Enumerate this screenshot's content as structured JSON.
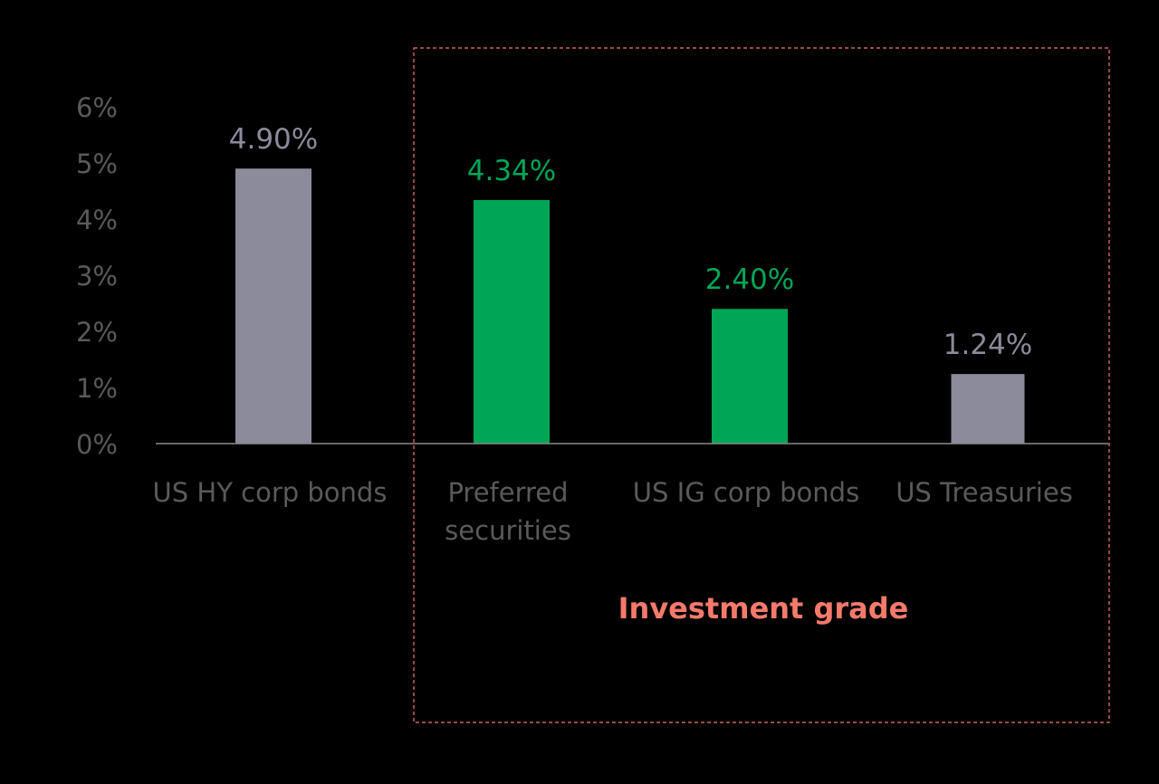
{
  "chart_data": {
    "type": "bar",
    "categories": [
      [
        "US HY corp bonds"
      ],
      [
        "Preferred",
        "securities"
      ],
      [
        "US IG corp bonds"
      ],
      [
        "US Treasuries"
      ]
    ],
    "values": [
      4.9,
      4.34,
      2.4,
      1.24
    ],
    "value_labels": [
      "4.90%",
      "4.34%",
      "2.40%",
      "1.24%"
    ],
    "bar_colors": [
      "#8b8b9b",
      "#00a556",
      "#00a556",
      "#8b8b9b"
    ],
    "value_label_colors": [
      "#8b8b9b",
      "#00a556",
      "#00a556",
      "#8b8b9b"
    ],
    "y_ticks": [
      "0%",
      "1%",
      "2%",
      "3%",
      "4%",
      "5%",
      "6%"
    ],
    "ylim": [
      0,
      6
    ],
    "grid": false,
    "group": {
      "label": "Investment grade",
      "categories": [
        1,
        2,
        3
      ],
      "color": "#f47a6b"
    }
  }
}
